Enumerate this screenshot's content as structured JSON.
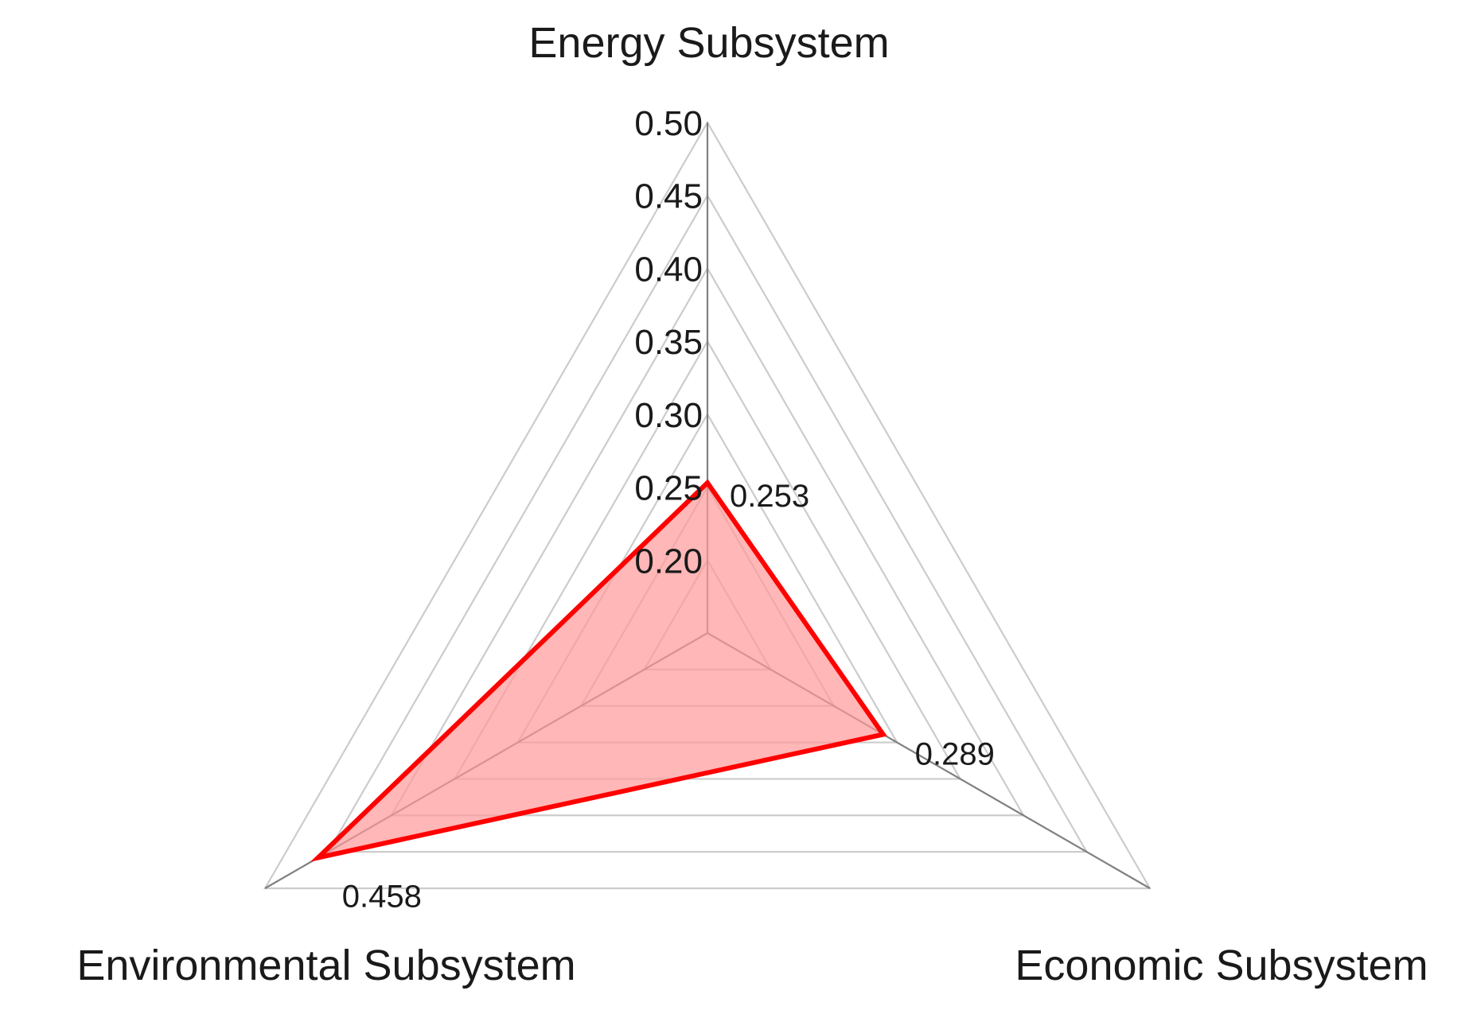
{
  "chart_data": {
    "type": "radar",
    "title": "",
    "axes": [
      "Energy Subsystem",
      "Economic Subsystem",
      "Environmental Subsystem"
    ],
    "rlim": [
      0.15,
      0.5
    ],
    "ticks": [
      0.2,
      0.25,
      0.3,
      0.35,
      0.4,
      0.45,
      0.5
    ],
    "tick_labels": [
      "0.20",
      "0.25",
      "0.30",
      "0.35",
      "0.40",
      "0.45",
      "0.50"
    ],
    "grid": true,
    "legend": "none",
    "series": [
      {
        "values": [
          0.253,
          0.289,
          0.458
        ],
        "value_labels": [
          "0.253",
          "0.289",
          "0.458"
        ],
        "color": "#ff0000",
        "fill": "#ff9999"
      }
    ]
  }
}
